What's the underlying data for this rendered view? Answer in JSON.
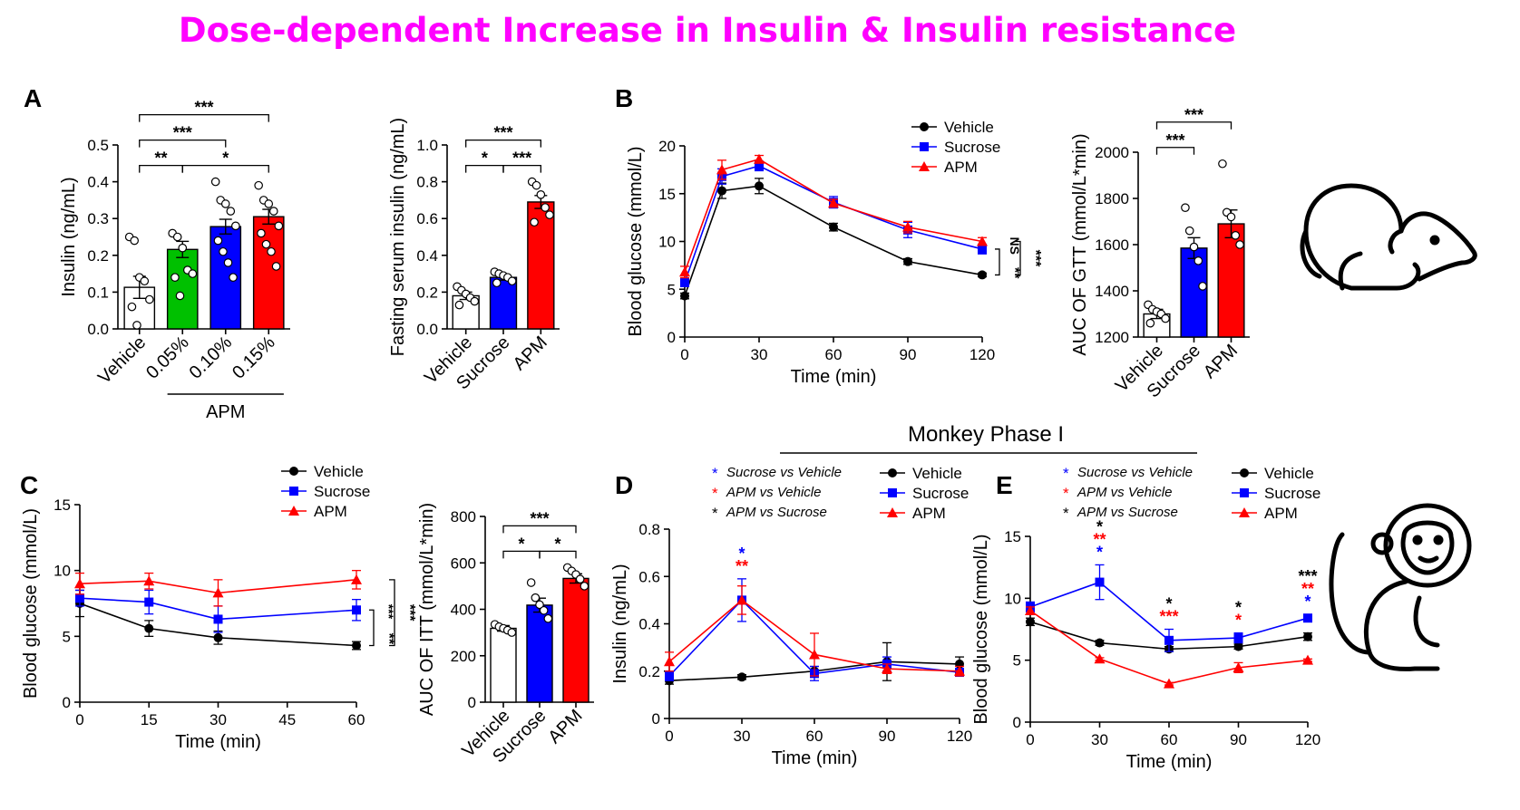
{
  "page_title": "Dose-dependent Increase in Insulin & Insulin resistance",
  "colors": {
    "title": "#ff00ff",
    "vehicle": "#000000",
    "sucrose": "#0000ff",
    "apm": "#ff0000",
    "green": "#00c000",
    "white": "#ffffff"
  },
  "panel_letters": {
    "A": "A",
    "B": "B",
    "C": "C",
    "D": "D",
    "E": "E"
  },
  "monkey_label": "Monkey Phase I",
  "icons": [
    "mouse-icon",
    "monkey-icon"
  ],
  "chart_data": [
    {
      "id": "A1",
      "type": "bar",
      "ylabel": "Insulin (ng/mL)",
      "ylim": [
        0,
        0.5
      ],
      "yticks": [
        "0.0",
        "0.1",
        "0.2",
        "0.3",
        "0.4",
        "0.5"
      ],
      "categories": [
        "Vehicle",
        "0.05%",
        "0.10%",
        "0.15%"
      ],
      "values": [
        0.113,
        0.216,
        0.278,
        0.305
      ],
      "errors": [
        0.03,
        0.022,
        0.02,
        0.02
      ],
      "bar_colors": [
        "#ffffff",
        "#00c000",
        "#0000ff",
        "#ff0000"
      ],
      "group_label": "APM",
      "points": [
        [
          0.25,
          0.24,
          0.14,
          0.13,
          0.08,
          0.06,
          0.01
        ],
        [
          0.26,
          0.25,
          0.22,
          0.16,
          0.15,
          0.14,
          0.09
        ],
        [
          0.4,
          0.35,
          0.34,
          0.32,
          0.28,
          0.24,
          0.21,
          0.18,
          0.14
        ],
        [
          0.39,
          0.35,
          0.34,
          0.32,
          0.28,
          0.26,
          0.23,
          0.21,
          0.17
        ]
      ],
      "sig": [
        {
          "a": 0,
          "b": 1,
          "label": "**",
          "level": 0
        },
        {
          "a": 1,
          "b": 3,
          "label": "*",
          "level": 0
        },
        {
          "a": 0,
          "b": 2,
          "label": "***",
          "level": 1
        },
        {
          "a": 0,
          "b": 3,
          "label": "***",
          "level": 2
        }
      ]
    },
    {
      "id": "A2",
      "type": "bar",
      "ylabel": "Fasting serum insulin (ng/mL)",
      "ylim": [
        0,
        1.0
      ],
      "yticks": [
        "0.0",
        "0.2",
        "0.4",
        "0.6",
        "0.8",
        "1.0"
      ],
      "categories": [
        "Vehicle",
        "Sucrose",
        "APM"
      ],
      "values": [
        0.18,
        0.28,
        0.69
      ],
      "errors": [
        0.02,
        0.015,
        0.035
      ],
      "bar_colors": [
        "#ffffff",
        "#0000ff",
        "#ff0000"
      ],
      "points": [
        [
          0.23,
          0.21,
          0.19,
          0.17,
          0.15,
          0.13
        ],
        [
          0.31,
          0.3,
          0.29,
          0.28,
          0.26,
          0.25
        ],
        [
          0.8,
          0.78,
          0.73,
          0.66,
          0.62,
          0.58
        ]
      ],
      "sig": [
        {
          "a": 0,
          "b": 1,
          "label": "*",
          "level": 0
        },
        {
          "a": 1,
          "b": 2,
          "label": "***",
          "level": 0
        },
        {
          "a": 0,
          "b": 2,
          "label": "***",
          "level": 1
        }
      ]
    },
    {
      "id": "B1",
      "type": "line",
      "ylabel": "Blood glucose (mmol/L)",
      "xlabel": "Time (min)",
      "ylim": [
        0,
        20
      ],
      "yticks": [
        "0",
        "5",
        "10",
        "15",
        "20"
      ],
      "xlim": [
        0,
        120
      ],
      "xticks": [
        "0",
        "30",
        "60",
        "90",
        "120"
      ],
      "x": [
        0,
        15,
        30,
        60,
        90,
        120
      ],
      "series": [
        {
          "name": "Vehicle",
          "marker": "circle",
          "values": [
            4.3,
            15.3,
            15.8,
            11.5,
            7.9,
            6.5
          ],
          "errors": [
            0.3,
            0.8,
            0.8,
            0.4,
            0.3,
            0.2
          ]
        },
        {
          "name": "Sucrose",
          "marker": "square",
          "values": [
            5.7,
            16.8,
            17.9,
            14.1,
            11.2,
            9.2
          ],
          "errors": [
            0.4,
            0.8,
            0.5,
            0.6,
            0.8,
            0.5
          ]
        },
        {
          "name": "APM",
          "marker": "triangle",
          "values": [
            6.8,
            17.5,
            18.6,
            14.0,
            11.5,
            10.0
          ],
          "errors": [
            0.6,
            1.0,
            0.4,
            0.4,
            0.6,
            0.4
          ]
        }
      ],
      "sig_right": [
        {
          "label": "**",
          "group": 0
        },
        {
          "label": "NS",
          "group": 0
        },
        {
          "label": "***",
          "group": 1
        }
      ]
    },
    {
      "id": "B2",
      "type": "bar",
      "ylabel": "AUC OF GTT (mmol/L*min)",
      "ylim": [
        1200,
        2000
      ],
      "yticks": [
        "1200",
        "1400",
        "1600",
        "1800",
        "2000"
      ],
      "categories": [
        "Vehicle",
        "Sucrose",
        "APM"
      ],
      "values": [
        1300,
        1585,
        1690
      ],
      "errors": [
        20,
        45,
        60
      ],
      "bar_colors": [
        "#ffffff",
        "#0000ff",
        "#ff0000"
      ],
      "points": [
        [
          1340,
          1320,
          1310,
          1300,
          1280,
          1260
        ],
        [
          1760,
          1660,
          1590,
          1530,
          1420
        ],
        [
          1950,
          1740,
          1720,
          1640,
          1600
        ]
      ],
      "sig": [
        {
          "a": 0,
          "b": 1,
          "label": "***",
          "level": 0
        },
        {
          "a": 0,
          "b": 2,
          "label": "***",
          "level": 1
        }
      ]
    },
    {
      "id": "C1",
      "type": "line",
      "ylabel": "Blood glucose (mmol/L)",
      "xlabel": "Time (min)",
      "ylim": [
        0,
        15
      ],
      "yticks": [
        "0",
        "5",
        "10",
        "15"
      ],
      "xlim": [
        0,
        60
      ],
      "xticks": [
        "0",
        "15",
        "30",
        "45",
        "60"
      ],
      "x": [
        0,
        15,
        30,
        60
      ],
      "series": [
        {
          "name": "Vehicle",
          "marker": "circle",
          "values": [
            7.5,
            5.6,
            4.9,
            4.3
          ],
          "errors": [
            1.0,
            0.6,
            0.5,
            0.3
          ]
        },
        {
          "name": "Sucrose",
          "marker": "square",
          "values": [
            7.9,
            7.6,
            6.3,
            7.0
          ],
          "errors": [
            0.6,
            0.9,
            1.0,
            0.8
          ]
        },
        {
          "name": "APM",
          "marker": "triangle",
          "values": [
            9.0,
            9.2,
            8.3,
            9.3
          ],
          "errors": [
            0.8,
            0.6,
            1.0,
            0.7
          ]
        }
      ],
      "sig_right": [
        {
          "label": "**",
          "group": 0
        },
        {
          "label": "***",
          "group": 0
        },
        {
          "label": "***",
          "group": 1
        }
      ]
    },
    {
      "id": "C2",
      "type": "bar",
      "ylabel": "AUC OF ITT (mmol/L*min)",
      "ylim": [
        0,
        800
      ],
      "yticks": [
        "0",
        "200",
        "400",
        "600",
        "800"
      ],
      "categories": [
        "Vehicle",
        "Sucrose",
        "APM"
      ],
      "values": [
        318,
        418,
        533
      ],
      "errors": [
        12,
        30,
        20
      ],
      "bar_colors": [
        "#ffffff",
        "#0000ff",
        "#ff0000"
      ],
      "points": [
        [
          335,
          325,
          318,
          310,
          300
        ],
        [
          515,
          450,
          420,
          395,
          360
        ],
        [
          580,
          565,
          550,
          530,
          500
        ]
      ],
      "sig": [
        {
          "a": 0,
          "b": 1,
          "label": "*",
          "level": 0
        },
        {
          "a": 1,
          "b": 2,
          "label": "*",
          "level": 0
        },
        {
          "a": 0,
          "b": 2,
          "label": "***",
          "level": 1
        }
      ]
    },
    {
      "id": "D",
      "type": "line",
      "ylabel": "Insulin (ng/mL)",
      "xlabel": "Time (min)",
      "ylim": [
        0,
        0.8
      ],
      "yticks": [
        "0",
        "0.2",
        "0.4",
        "0.6",
        "0.8"
      ],
      "xlim": [
        0,
        120
      ],
      "xticks": [
        "0",
        "30",
        "60",
        "90",
        "120"
      ],
      "x": [
        0,
        30,
        60,
        90,
        120
      ],
      "series": [
        {
          "name": "Vehicle",
          "marker": "circle",
          "values": [
            0.16,
            0.175,
            0.2,
            0.24,
            0.23
          ],
          "errors": [
            0.015,
            0.01,
            0.02,
            0.08,
            0.03
          ]
        },
        {
          "name": "Sucrose",
          "marker": "square",
          "values": [
            0.18,
            0.5,
            0.19,
            0.23,
            0.195
          ],
          "errors": [
            0.02,
            0.09,
            0.03,
            0.03,
            0.015
          ]
        },
        {
          "name": "APM",
          "marker": "triangle",
          "values": [
            0.24,
            0.5,
            0.27,
            0.21,
            0.2
          ],
          "errors": [
            0.04,
            0.06,
            0.09,
            0.02,
            0.02
          ]
        }
      ],
      "stats_legend": [
        {
          "label": "Sucrose vs Vehicle",
          "color": "#0000ff"
        },
        {
          "label": "APM vs Vehicle",
          "color": "#ff0000"
        },
        {
          "label": "APM vs Sucrose",
          "color": "#000000"
        }
      ],
      "point_sig": [
        {
          "x": 30,
          "lines": [
            {
              "text": "*",
              "color": "#0000ff"
            },
            {
              "text": "**",
              "color": "#ff0000"
            }
          ]
        }
      ]
    },
    {
      "id": "E",
      "type": "line",
      "ylabel": "Blood glucose (mmol/L)",
      "xlabel": "Time (min)",
      "ylim": [
        0,
        15
      ],
      "yticks": [
        "0",
        "5",
        "10",
        "15"
      ],
      "xlim": [
        0,
        120
      ],
      "xticks": [
        "0",
        "30",
        "60",
        "90",
        "120"
      ],
      "x": [
        0,
        30,
        60,
        90,
        120
      ],
      "series": [
        {
          "name": "Vehicle",
          "marker": "circle",
          "values": [
            8.1,
            6.4,
            5.9,
            6.1,
            6.9
          ],
          "errors": [
            0.3,
            0.2,
            0.2,
            0.2,
            0.3
          ]
        },
        {
          "name": "Sucrose",
          "marker": "square",
          "values": [
            9.3,
            11.3,
            6.6,
            6.8,
            8.4
          ],
          "errors": [
            0.4,
            1.4,
            0.9,
            0.4,
            0.3
          ]
        },
        {
          "name": "APM",
          "marker": "triangle",
          "values": [
            9.0,
            5.1,
            3.1,
            4.4,
            5.0
          ],
          "errors": [
            0.3,
            0.1,
            0.1,
            0.4,
            0.1
          ]
        }
      ],
      "stats_legend": [
        {
          "label": "Sucrose vs Vehicle",
          "color": "#0000ff"
        },
        {
          "label": "APM vs Vehicle",
          "color": "#ff0000"
        },
        {
          "label": "APM vs Sucrose",
          "color": "#000000"
        }
      ],
      "point_sig": [
        {
          "x": 30,
          "lines": [
            {
              "text": "*",
              "color": "#000000"
            },
            {
              "text": "**",
              "color": "#ff0000"
            },
            {
              "text": "*",
              "color": "#0000ff"
            }
          ]
        },
        {
          "x": 60,
          "lines": [
            {
              "text": "*",
              "color": "#000000"
            },
            {
              "text": "***",
              "color": "#ff0000"
            }
          ]
        },
        {
          "x": 90,
          "lines": [
            {
              "text": "*",
              "color": "#000000"
            },
            {
              "text": "*",
              "color": "#ff0000"
            }
          ]
        },
        {
          "x": 120,
          "lines": [
            {
              "text": "***",
              "color": "#000000"
            },
            {
              "text": "**",
              "color": "#ff0000"
            },
            {
              "text": "*",
              "color": "#0000ff"
            }
          ]
        }
      ]
    }
  ]
}
